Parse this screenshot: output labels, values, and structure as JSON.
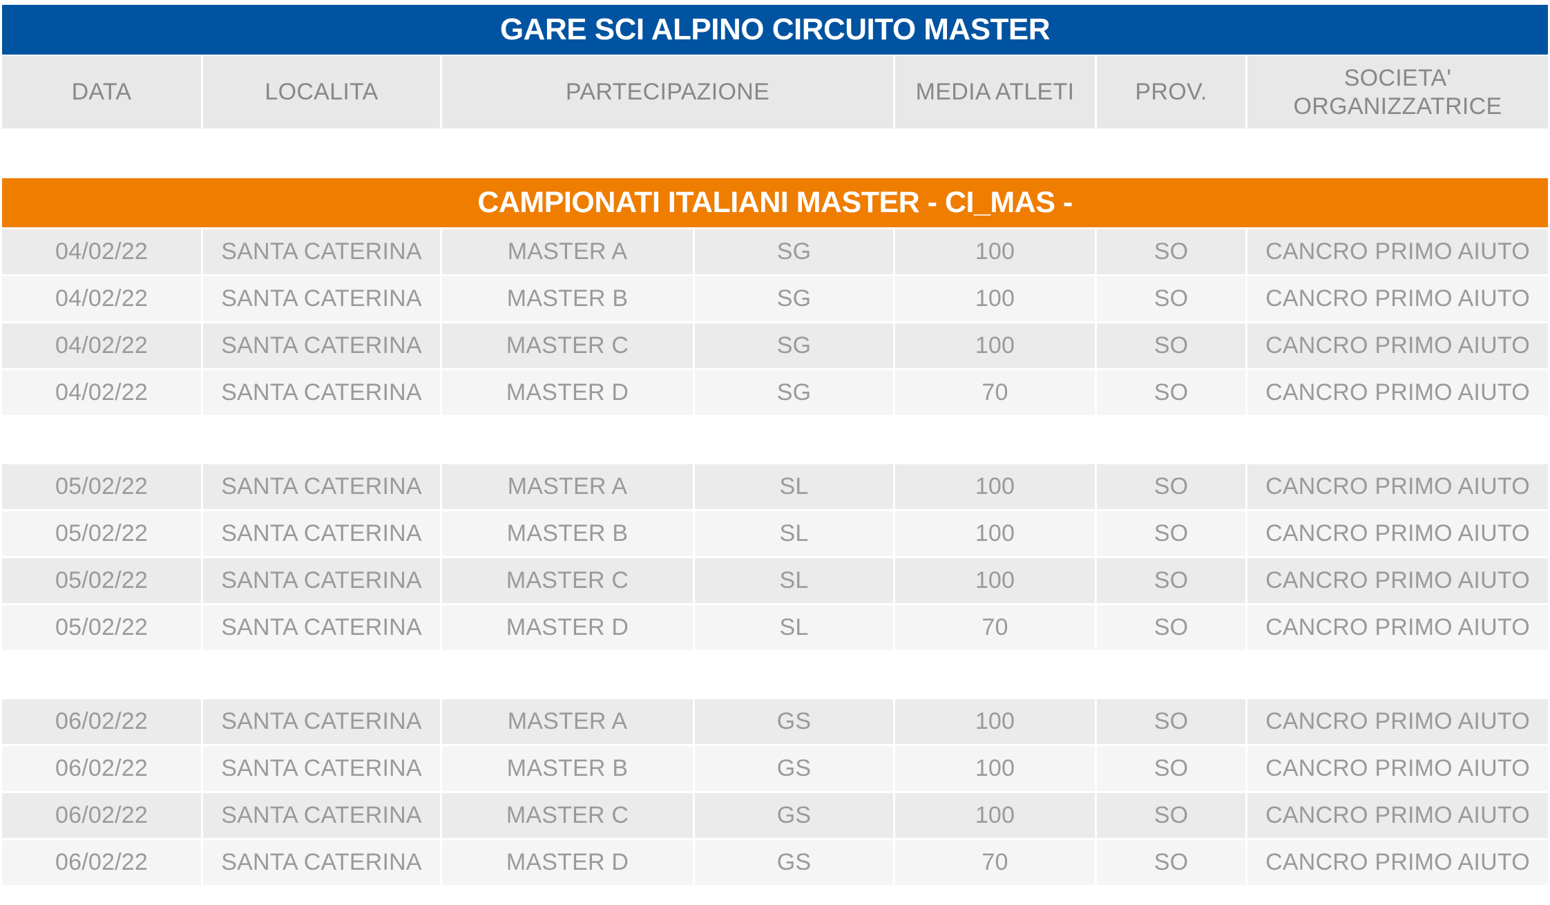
{
  "title": "GARE SCI ALPINO CIRCUITO MASTER",
  "columns": {
    "data": "DATA",
    "localita": "LOCALITA",
    "partecipazione": "PARTECIPAZIONE",
    "media_atleti": "MEDIA ATLETI",
    "prov": "PROV.",
    "societa_line1": "SOCIETA'",
    "societa_line2": "ORGANIZZATRICE"
  },
  "section_title": "CAMPIONATI ITALIANI MASTER - CI_MAS -",
  "groups": [
    {
      "rows": [
        {
          "data": "04/02/22",
          "localita": "SANTA CATERINA",
          "categoria": "MASTER A",
          "specialita": "SG",
          "media_atleti": "100",
          "prov": "SO",
          "societa": "CANCRO PRIMO AIUTO"
        },
        {
          "data": "04/02/22",
          "localita": "SANTA CATERINA",
          "categoria": "MASTER B",
          "specialita": "SG",
          "media_atleti": "100",
          "prov": "SO",
          "societa": "CANCRO PRIMO AIUTO"
        },
        {
          "data": "04/02/22",
          "localita": "SANTA CATERINA",
          "categoria": "MASTER C",
          "specialita": "SG",
          "media_atleti": "100",
          "prov": "SO",
          "societa": "CANCRO PRIMO AIUTO"
        },
        {
          "data": "04/02/22",
          "localita": "SANTA CATERINA",
          "categoria": "MASTER D",
          "specialita": "SG",
          "media_atleti": "70",
          "prov": "SO",
          "societa": "CANCRO PRIMO AIUTO"
        }
      ]
    },
    {
      "rows": [
        {
          "data": "05/02/22",
          "localita": "SANTA CATERINA",
          "categoria": "MASTER A",
          "specialita": "SL",
          "media_atleti": "100",
          "prov": "SO",
          "societa": "CANCRO PRIMO AIUTO"
        },
        {
          "data": "05/02/22",
          "localita": "SANTA CATERINA",
          "categoria": "MASTER B",
          "specialita": "SL",
          "media_atleti": "100",
          "prov": "SO",
          "societa": "CANCRO PRIMO AIUTO"
        },
        {
          "data": "05/02/22",
          "localita": "SANTA CATERINA",
          "categoria": "MASTER C",
          "specialita": "SL",
          "media_atleti": "100",
          "prov": "SO",
          "societa": "CANCRO PRIMO AIUTO"
        },
        {
          "data": "05/02/22",
          "localita": "SANTA CATERINA",
          "categoria": "MASTER D",
          "specialita": "SL",
          "media_atleti": "70",
          "prov": "SO",
          "societa": "CANCRO PRIMO AIUTO"
        }
      ]
    },
    {
      "rows": [
        {
          "data": "06/02/22",
          "localita": "SANTA CATERINA",
          "categoria": "MASTER A",
          "specialita": "GS",
          "media_atleti": "100",
          "prov": "SO",
          "societa": "CANCRO PRIMO AIUTO"
        },
        {
          "data": "06/02/22",
          "localita": "SANTA CATERINA",
          "categoria": "MASTER B",
          "specialita": "GS",
          "media_atleti": "100",
          "prov": "SO",
          "societa": "CANCRO PRIMO AIUTO"
        },
        {
          "data": "06/02/22",
          "localita": "SANTA CATERINA",
          "categoria": "MASTER C",
          "specialita": "GS",
          "media_atleti": "100",
          "prov": "SO",
          "societa": "CANCRO PRIMO AIUTO"
        },
        {
          "data": "06/02/22",
          "localita": "SANTA CATERINA",
          "categoria": "MASTER D",
          "specialita": "GS",
          "media_atleti": "70",
          "prov": "SO",
          "societa": "CANCRO PRIMO AIUTO"
        }
      ]
    }
  ],
  "colors": {
    "title_band": "#0053a0",
    "section_band": "#ef7d00",
    "header_bg": "#e8e8e8",
    "row_odd": "#ebebeb",
    "row_even": "#f5f5f5",
    "cell_text": "#9a9a9a"
  }
}
